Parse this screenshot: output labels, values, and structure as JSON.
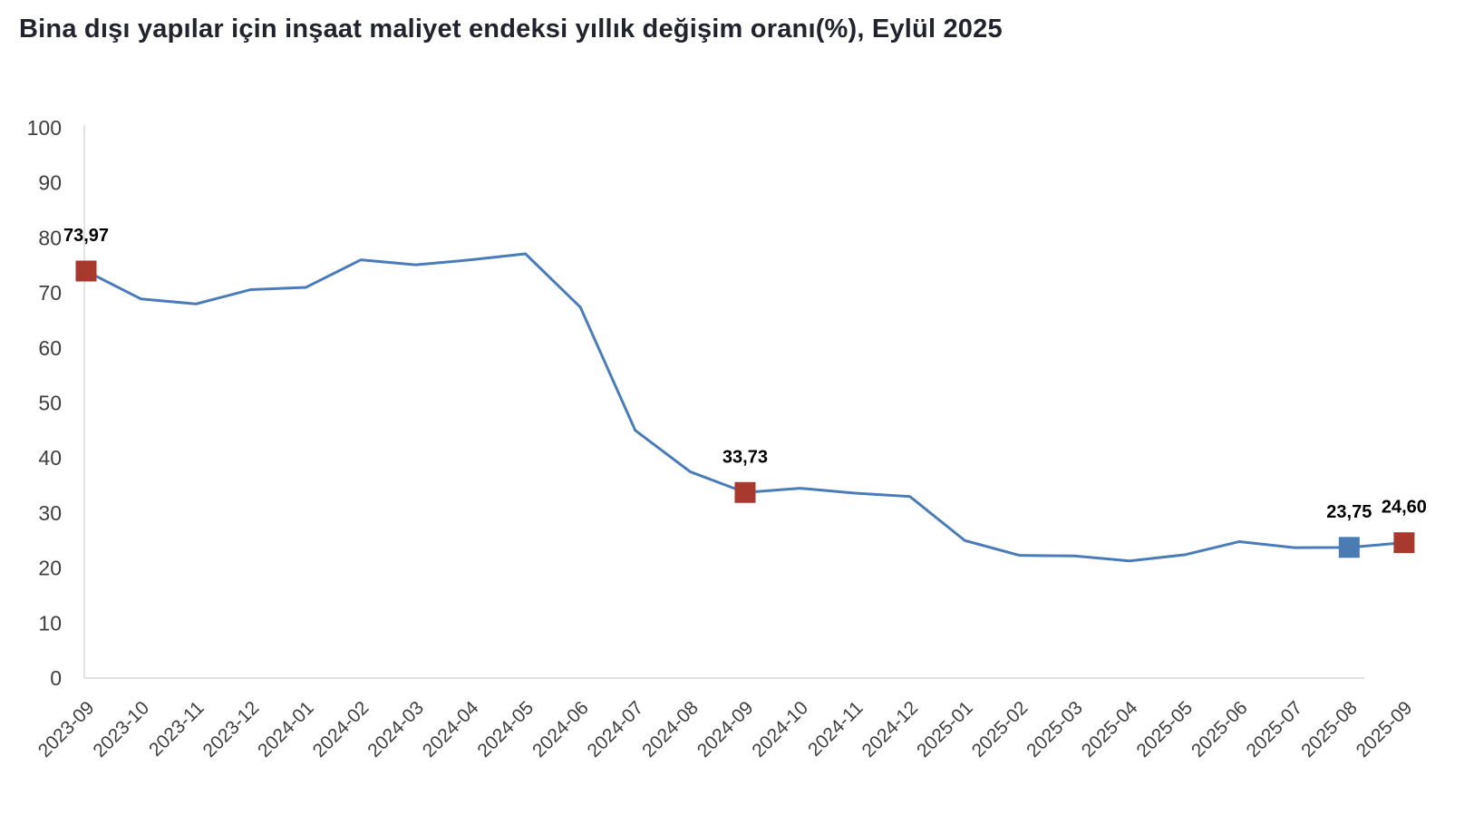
{
  "title": "Bina dışı yapılar için inşaat maliyet endeksi yıllık değişim oranı(%), Eylül 2025",
  "colors": {
    "line": "#4a7cb8",
    "marker_red": "#a8392e",
    "marker_blue": "#4a7bb3",
    "axis": "#d9d9d9",
    "tick_label": "#3f3f3f",
    "data_label": "#000000",
    "title": "#21242c",
    "background": "#ffffff"
  },
  "chart_data": {
    "type": "line",
    "title": "Bina dışı yapılar için inşaat maliyet endeksi yıllık değişim oranı(%), Eylül 2025",
    "xlabel": "",
    "ylabel": "",
    "ylim": [
      0,
      100
    ],
    "y_ticks": [
      0,
      10,
      20,
      30,
      40,
      50,
      60,
      70,
      80,
      90,
      100
    ],
    "grid": false,
    "legend": "none",
    "x": [
      "2023-09",
      "2023-10",
      "2023-11",
      "2023-12",
      "2024-01",
      "2024-02",
      "2024-03",
      "2024-04",
      "2024-05",
      "2024-06",
      "2024-07",
      "2024-08",
      "2024-09",
      "2024-10",
      "2024-11",
      "2024-12",
      "2025-01",
      "2025-02",
      "2025-03",
      "2025-04",
      "2025-05",
      "2025-06",
      "2025-07",
      "2025-08",
      "2025-09"
    ],
    "values": [
      73.97,
      68.9,
      68.0,
      70.6,
      71.0,
      76.0,
      75.1,
      76.0,
      77.1,
      67.4,
      45.0,
      37.5,
      33.73,
      34.5,
      33.6,
      33.0,
      25.0,
      22.3,
      22.2,
      21.3,
      22.4,
      24.8,
      23.7,
      23.75,
      24.6
    ],
    "annotations": [
      {
        "x": "2023-09",
        "value": 73.97,
        "label": "73,97",
        "marker": "red-square",
        "marker_color": "#a8392e"
      },
      {
        "x": "2024-09",
        "value": 33.73,
        "label": "33,73",
        "marker": "red-square",
        "marker_color": "#a8392e"
      },
      {
        "x": "2025-08",
        "value": 23.75,
        "label": "23,75",
        "marker": "blue-square",
        "marker_color": "#4a7bb3"
      },
      {
        "x": "2025-09",
        "value": 24.6,
        "label": "24,60",
        "marker": "red-square",
        "marker_color": "#a8392e"
      }
    ]
  }
}
